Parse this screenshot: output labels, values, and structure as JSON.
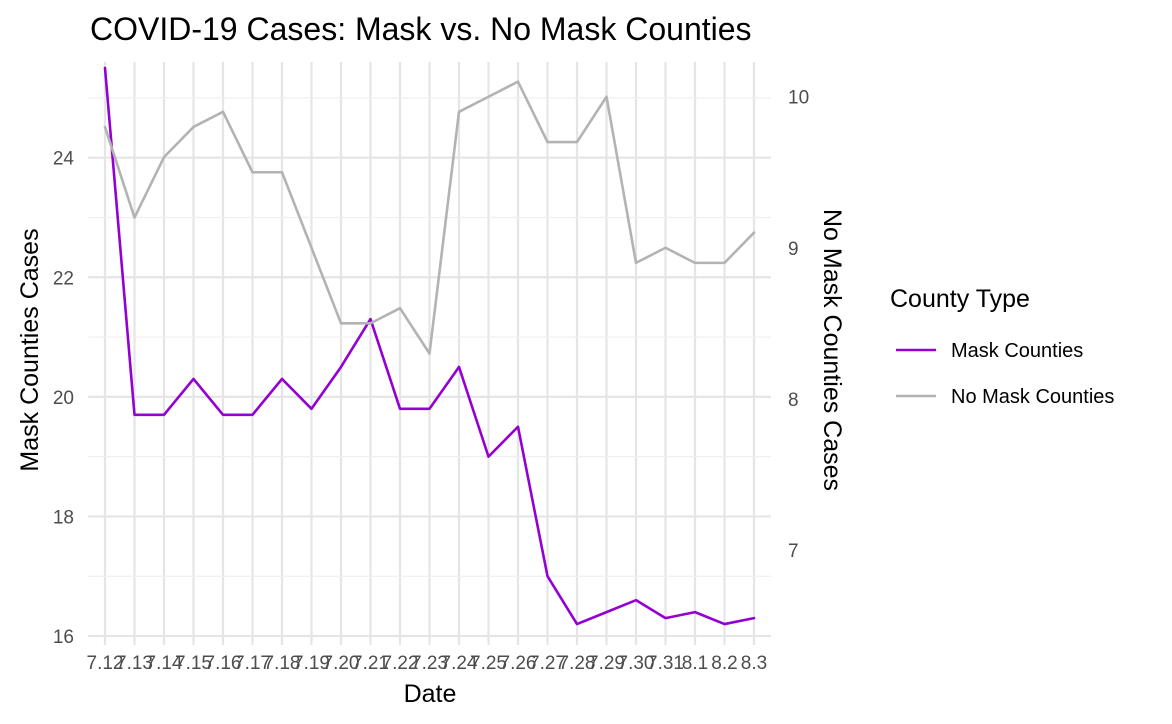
{
  "chart_data": {
    "type": "line",
    "title": "COVID-19 Cases: Mask vs. No Mask Counties",
    "xlabel": "Date",
    "ylabel": "Mask Counties Cases",
    "y2label": "No Mask Counties Cases",
    "categories": [
      "7.12",
      "7.13",
      "7.14",
      "7.15",
      "7.16",
      "7.17",
      "7.18",
      "7.19",
      "7.20",
      "7.21",
      "7.22",
      "7.23",
      "7.24",
      "7.25",
      "7.26",
      "7.27",
      "7.28",
      "7.29",
      "7.30",
      "7.31",
      "8.1",
      "8.2",
      "8.3"
    ],
    "ylim": [
      15.85,
      25.6
    ],
    "y2lim": [
      6.37,
      10.23
    ],
    "y_ticks": [
      16,
      18,
      20,
      22,
      24
    ],
    "y2_ticks": [
      7,
      8,
      9,
      10
    ],
    "grid": true,
    "legend": {
      "title": "County Type",
      "placement": "right"
    },
    "series": [
      {
        "name": "Mask Counties",
        "axis": "left",
        "color": "#9400d3",
        "values": [
          25.5,
          19.7,
          19.7,
          20.3,
          19.7,
          19.7,
          20.3,
          19.8,
          20.5,
          21.3,
          19.8,
          19.8,
          20.5,
          19.0,
          19.5,
          17.0,
          16.2,
          16.4,
          16.6,
          16.3,
          16.4,
          16.2,
          16.3
        ]
      },
      {
        "name": "No Mask Counties",
        "axis": "right",
        "color": "#b3b3b3",
        "values": [
          9.8,
          9.2,
          9.6,
          9.8,
          9.9,
          9.5,
          9.5,
          9.0,
          8.5,
          8.5,
          8.6,
          8.3,
          9.9,
          10.0,
          10.1,
          9.7,
          9.7,
          10.0,
          8.9,
          9.0,
          8.9,
          8.9,
          9.1
        ]
      }
    ]
  }
}
